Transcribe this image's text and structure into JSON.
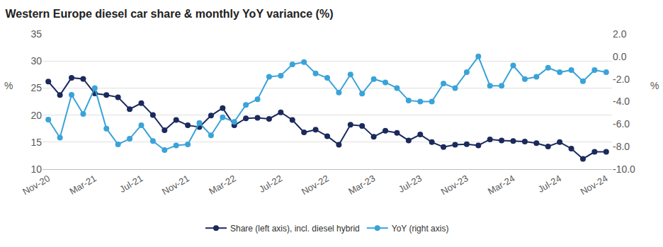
{
  "chart_data": {
    "type": "line",
    "title": "Western Europe diesel car share & monthly YoY variance (%)",
    "ylabel": "%",
    "y2label": "%",
    "categories": [
      "Nov-20",
      null,
      null,
      null,
      "Mar-21",
      null,
      null,
      null,
      "Jul-21",
      null,
      null,
      null,
      "Nov-21",
      null,
      null,
      null,
      "Mar-22",
      null,
      null,
      null,
      "Jul-22",
      null,
      null,
      null,
      "Nov-22",
      null,
      null,
      null,
      "Mar-23",
      null,
      null,
      null,
      "Jul-23",
      null,
      null,
      null,
      "Nov-23",
      null,
      null,
      null,
      "Mar-24",
      null,
      null,
      null,
      "Jul-24",
      null,
      null,
      null,
      "Nov-24"
    ],
    "series": [
      {
        "name": "Share (left axis), incl. diesel hybrid",
        "color": "#1b2a5c",
        "axis": "y",
        "marker": "circle",
        "values": [
          26.2,
          23.7,
          26.9,
          26.7,
          24.0,
          23.7,
          23.3,
          21.1,
          22.2,
          20.0,
          17.2,
          19.1,
          18.1,
          17.8,
          19.9,
          21.3,
          18.1,
          19.4,
          19.5,
          19.3,
          20.5,
          19.1,
          16.8,
          17.3,
          16.1,
          14.5,
          18.2,
          18.0,
          16.0,
          17.1,
          16.7,
          15.3,
          16.4,
          15.0,
          14.1,
          14.5,
          14.6,
          14.4,
          15.5,
          15.3,
          15.2,
          15.1,
          14.8,
          14.2,
          15.0,
          13.8,
          11.9,
          13.2,
          13.2
        ]
      },
      {
        "name": "YoY (right axis)",
        "color": "#3aa3d8",
        "axis": "y2",
        "marker": "circle",
        "values": [
          -5.6,
          -7.2,
          -3.4,
          -5.1,
          -2.8,
          -6.4,
          -7.8,
          -7.3,
          -6.1,
          -7.5,
          -8.3,
          -7.9,
          -7.8,
          -5.9,
          -7.0,
          -5.4,
          -5.8,
          -4.3,
          -3.8,
          -1.8,
          -1.7,
          -0.7,
          -0.5,
          -1.5,
          -1.9,
          -3.2,
          -1.6,
          -3.3,
          -2.0,
          -2.3,
          -2.8,
          -3.9,
          -4.0,
          -4.0,
          -2.4,
          -2.8,
          -1.4,
          0.0,
          -2.6,
          -2.6,
          -0.8,
          -2.0,
          -1.8,
          -1.0,
          -1.4,
          -1.2,
          -2.2,
          -1.2,
          -1.4
        ]
      }
    ],
    "ylim": [
      10,
      35
    ],
    "yticks": [
      10,
      15,
      20,
      25,
      30,
      35
    ],
    "y2lim": [
      -10,
      2
    ],
    "y2ticks": [
      {
        "value": -10,
        "label": "-10.0"
      },
      {
        "value": -8,
        "label": "-8.0"
      },
      {
        "value": -6,
        "label": "-6.0"
      },
      {
        "value": -4,
        "label": "-4.0"
      },
      {
        "value": -2,
        "label": "-2.0"
      },
      {
        "value": 0,
        "label": "0.0"
      },
      {
        "value": 2,
        "label": "2.0"
      }
    ],
    "grid": true,
    "legend": "bottom"
  }
}
